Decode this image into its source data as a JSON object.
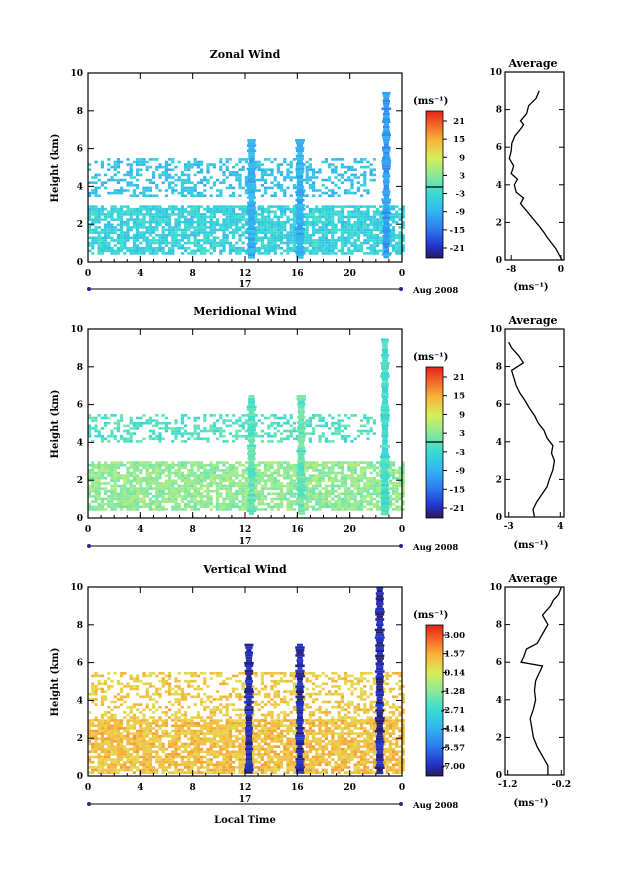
{
  "panels": [
    {
      "title": "Zonal Wind",
      "ylabel": "Height (km)",
      "unit": "(ms⁻¹)",
      "xticks": [
        "0",
        "4",
        "8",
        "12",
        "16",
        "20",
        "0"
      ],
      "yticks": [
        "0",
        "2",
        "4",
        "6",
        "8",
        "10"
      ],
      "date_day": "17",
      "date_label": "Aug 2008",
      "colorbar_ticks": [
        "21",
        "15",
        "9",
        "3",
        "-3",
        "-9",
        "-15",
        "-21"
      ],
      "avg_title": "Average",
      "avg_xticks": [
        "-8",
        "0"
      ],
      "avg_xlim": [
        -9,
        0.5
      ],
      "avg_unit": "(ms⁻¹)",
      "avg_yticks": [
        "0",
        "2",
        "4",
        "6",
        "8",
        "10"
      ]
    },
    {
      "title": "Meridional Wind",
      "ylabel": "Height (km)",
      "unit": "(ms⁻¹)",
      "xticks": [
        "0",
        "4",
        "8",
        "12",
        "16",
        "20",
        "0"
      ],
      "yticks": [
        "0",
        "2",
        "4",
        "6",
        "8",
        "10"
      ],
      "date_day": "17",
      "date_label": "Aug 2008",
      "colorbar_ticks": [
        "21",
        "15",
        "9",
        "3",
        "-3",
        "-9",
        "-15",
        "-21"
      ],
      "avg_title": "Average",
      "avg_xticks": [
        "-3",
        "4"
      ],
      "avg_xlim": [
        -3.5,
        4.5
      ],
      "avg_unit": "(ms⁻¹)",
      "avg_yticks": [
        "0",
        "2",
        "4",
        "6",
        "8",
        "10"
      ]
    },
    {
      "title": "Vertical Wind",
      "ylabel": "Height (km)",
      "unit": "(ms⁻¹)",
      "xticks": [
        "0",
        "4",
        "8",
        "12",
        "16",
        "20",
        "0"
      ],
      "yticks": [
        "0",
        "2",
        "4",
        "6",
        "8",
        "10"
      ],
      "date_day": "17",
      "date_label": "Aug 2008",
      "colorbar_ticks": [
        "3.00",
        "1.57",
        "0.14",
        "-1.28",
        "-2.71",
        "-4.14",
        "-5.57",
        "-7.00"
      ],
      "avg_title": "Average",
      "avg_xticks": [
        "-1.2",
        "-0.2"
      ],
      "avg_xlim": [
        -1.25,
        -0.15
      ],
      "avg_unit": "(ms⁻¹)",
      "avg_yticks": [
        "0",
        "2",
        "4",
        "6",
        "8",
        "10"
      ]
    }
  ],
  "bottom_xlabel": "Local Time",
  "chart_data": [
    {
      "type": "heatmap",
      "title": "Zonal Wind",
      "ylabel": "Height (km)",
      "x_range_hours": [
        0,
        24
      ],
      "ylim": [
        0,
        10
      ],
      "clim": [
        -21,
        21
      ],
      "features": [
        {
          "kind": "layer",
          "t0": 0,
          "t1": 24,
          "h0": 0.5,
          "h1": 3.0,
          "value": -4
        },
        {
          "kind": "patches",
          "t0": 0,
          "t1": 22,
          "h0": 3.5,
          "h1": 5.5,
          "value": -6
        },
        {
          "kind": "column",
          "t": 12.5,
          "top": 6.5,
          "value": -8
        },
        {
          "kind": "column",
          "t": 16.2,
          "top": 6.5,
          "value": -8
        },
        {
          "kind": "column",
          "t": 22.8,
          "top": 9.0,
          "value": -10
        }
      ]
    },
    {
      "type": "line",
      "title": "Average",
      "xlabel": "(ms⁻¹)",
      "ylabel": "Height (km)",
      "xlim": [
        -9,
        0.5
      ],
      "ylim": [
        0,
        10
      ],
      "x": [
        0.2,
        -0.3,
        -0.8,
        -1.5,
        -2.2,
        -2.8,
        -3.5,
        -4.5,
        -5.5,
        -6.5,
        -6.0,
        -7.2,
        -7.5,
        -7.0,
        -8.0,
        -7.6,
        -8.3,
        -8.0,
        -7.9,
        -7.4,
        -6.4,
        -6.0,
        -6.5,
        -5.5,
        -5.2,
        -4.0,
        -3.5
      ],
      "y": [
        0.0,
        0.3,
        0.6,
        0.9,
        1.2,
        1.5,
        1.8,
        2.2,
        2.6,
        3.0,
        3.3,
        3.6,
        4.0,
        4.3,
        4.6,
        5.0,
        5.4,
        5.8,
        6.2,
        6.6,
        7.0,
        7.2,
        7.4,
        7.8,
        8.2,
        8.6,
        9.0
      ]
    },
    {
      "type": "heatmap",
      "title": "Meridional Wind",
      "ylabel": "Height (km)",
      "x_range_hours": [
        0,
        24
      ],
      "ylim": [
        0,
        10
      ],
      "clim": [
        -21,
        21
      ],
      "features": [
        {
          "kind": "layer",
          "t0": 0,
          "t1": 24,
          "h0": 0.5,
          "h1": 3.0,
          "value": 3
        },
        {
          "kind": "patches",
          "t0": 0,
          "t1": 22,
          "h0": 4.0,
          "h1": 5.5,
          "value": -1
        },
        {
          "kind": "column",
          "t": 12.5,
          "top": 6.5,
          "value": 0
        },
        {
          "kind": "column",
          "t": 16.3,
          "top": 6.5,
          "value": 0
        },
        {
          "kind": "column",
          "t": 22.7,
          "top": 9.5,
          "value": -2
        }
      ]
    },
    {
      "type": "line",
      "title": "Average",
      "xlabel": "(ms⁻¹)",
      "ylabel": "Height (km)",
      "xlim": [
        -3.5,
        4.5
      ],
      "ylim": [
        0,
        10
      ],
      "x": [
        0.5,
        0.3,
        0.8,
        1.5,
        2.2,
        2.5,
        3.0,
        3.2,
        2.8,
        3.0,
        2.2,
        1.8,
        1.0,
        0.5,
        -0.2,
        -0.8,
        -1.5,
        -2.0,
        -2.3,
        -2.6,
        -1.0,
        -1.7,
        -2.6,
        -3.0
      ],
      "y": [
        0.0,
        0.4,
        0.8,
        1.2,
        1.6,
        2.0,
        2.5,
        3.0,
        3.4,
        3.8,
        4.2,
        4.6,
        5.0,
        5.4,
        5.8,
        6.2,
        6.6,
        7.0,
        7.4,
        7.8,
        8.2,
        8.6,
        9.0,
        9.3
      ]
    },
    {
      "type": "heatmap",
      "title": "Vertical Wind",
      "ylabel": "Height (km)",
      "xlabel": "Local Time",
      "x_range_hours": [
        0,
        24
      ],
      "ylim": [
        0,
        10
      ],
      "clim": [
        -7.0,
        3.0
      ],
      "features": [
        {
          "kind": "layer",
          "t0": 0,
          "t1": 24,
          "h0": 0.2,
          "h1": 3.0,
          "value": 0.8
        },
        {
          "kind": "patches",
          "t0": 0,
          "t1": 24,
          "h0": 3.0,
          "h1": 5.5,
          "value": 0.6
        },
        {
          "kind": "column",
          "t": 12.3,
          "top": 7.0,
          "value": -6.5
        },
        {
          "kind": "column",
          "t": 16.2,
          "top": 7.0,
          "value": -6.5
        },
        {
          "kind": "column",
          "t": 22.3,
          "top": 10.0,
          "value": -6.5
        }
      ]
    },
    {
      "type": "line",
      "title": "Average",
      "xlabel": "(ms⁻¹)",
      "ylabel": "Height (km)",
      "xlim": [
        -1.25,
        -0.15
      ],
      "ylim": [
        0,
        10
      ],
      "x": [
        -0.45,
        -0.45,
        -0.55,
        -0.65,
        -0.72,
        -0.75,
        -0.78,
        -0.72,
        -0.68,
        -0.7,
        -0.68,
        -0.65,
        -0.6,
        -0.55,
        -0.95,
        -0.9,
        -0.85,
        -0.65,
        -0.55,
        -0.45,
        -0.55,
        -0.4,
        -0.35,
        -0.25,
        -0.2
      ],
      "y": [
        0.0,
        0.5,
        1.0,
        1.5,
        2.0,
        2.5,
        3.0,
        3.5,
        4.0,
        4.5,
        5.0,
        5.2,
        5.5,
        5.8,
        6.0,
        6.3,
        6.7,
        7.0,
        7.5,
        8.0,
        8.5,
        9.0,
        9.3,
        9.6,
        10.0
      ]
    }
  ]
}
